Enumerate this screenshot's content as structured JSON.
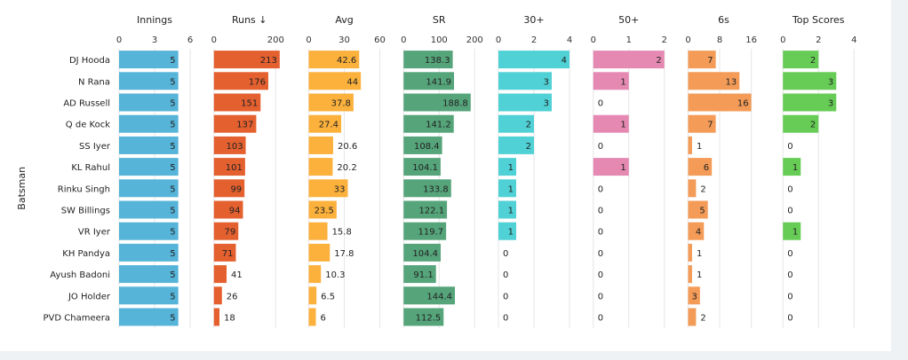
{
  "chart_data": {
    "type": "bar",
    "ylabel": "Batsman",
    "categories": [
      "DJ Hooda",
      "N Rana",
      "AD Russell",
      "Q de Kock",
      "SS Iyer",
      "KL Rahul",
      "Rinku Singh",
      "SW Billings",
      "VR Iyer",
      "KH Pandya",
      "Ayush Badoni",
      "JO Holder",
      "PVD Chameera"
    ],
    "panels": [
      {
        "name": "Innings",
        "color": "#56b4d9",
        "xlim": [
          0,
          6
        ],
        "ticks": [
          0,
          3,
          6
        ],
        "values": [
          5,
          5,
          5,
          5,
          5,
          5,
          5,
          5,
          5,
          5,
          5,
          5,
          5
        ]
      },
      {
        "name": "Runs ↓",
        "color": "#e4602f",
        "xlim": [
          0,
          230
        ],
        "ticks": [
          0,
          200
        ],
        "values": [
          213,
          176,
          151,
          137,
          103,
          101,
          99,
          94,
          79,
          71,
          41,
          26,
          18
        ]
      },
      {
        "name": "Avg",
        "color": "#fbb13c",
        "xlim": [
          0,
          60
        ],
        "ticks": [
          0,
          30,
          60
        ],
        "values": [
          42.6,
          44,
          37.8,
          27.4,
          20.6,
          20.2,
          33,
          23.5,
          15.8,
          17.8,
          10.3,
          6.5,
          6
        ]
      },
      {
        "name": "SR",
        "color": "#55a47a",
        "xlim": [
          0,
          200
        ],
        "ticks": [
          0,
          100,
          200
        ],
        "values": [
          138.3,
          141.9,
          188.8,
          141.2,
          108.4,
          104.1,
          133.8,
          122.1,
          119.7,
          104.4,
          91.1,
          144.4,
          112.5
        ]
      },
      {
        "name": "30+",
        "color": "#4fd1d5",
        "xlim": [
          0,
          4
        ],
        "ticks": [
          0,
          2,
          4
        ],
        "values": [
          4,
          3,
          3,
          2,
          2,
          1,
          1,
          1,
          1,
          0,
          0,
          0,
          0
        ]
      },
      {
        "name": "50+",
        "color": "#e589b3",
        "xlim": [
          0,
          2
        ],
        "ticks": [
          0,
          1,
          2
        ],
        "values": [
          2,
          1,
          0,
          1,
          0,
          1,
          0,
          0,
          0,
          0,
          0,
          0,
          0
        ]
      },
      {
        "name": "6s",
        "color": "#f39b57",
        "xlim": [
          0,
          18
        ],
        "ticks": [
          0,
          8,
          16
        ],
        "values": [
          7,
          13,
          16,
          7,
          1,
          6,
          2,
          5,
          4,
          1,
          1,
          3,
          2
        ]
      },
      {
        "name": "Top Scores",
        "color": "#66cc55",
        "xlim": [
          0,
          4
        ],
        "ticks": [
          0,
          2,
          4
        ],
        "values": [
          2,
          3,
          3,
          2,
          0,
          1,
          0,
          0,
          1,
          0,
          0,
          0,
          0
        ]
      }
    ]
  }
}
